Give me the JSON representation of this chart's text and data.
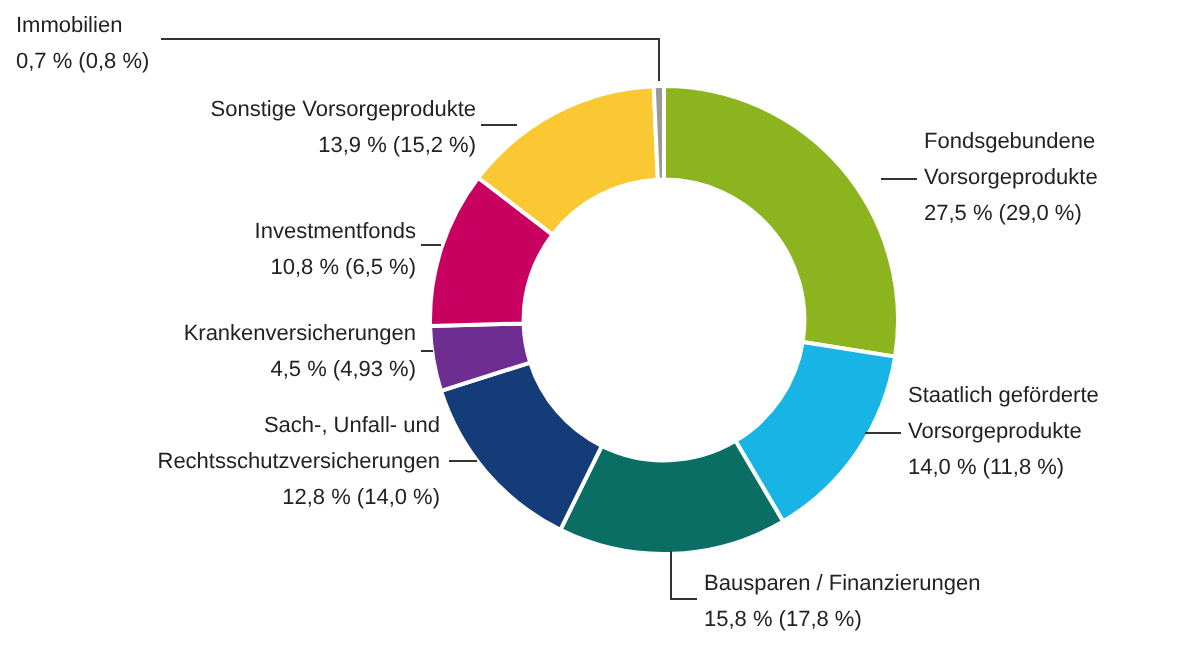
{
  "chart_data": {
    "type": "donut",
    "legend": false,
    "categories": [
      "Fondsgebundene Vorsorgeprodukte",
      "Staatlich geförderte Vorsorgeprodukte",
      "Bausparen / Finanzierungen",
      "Sach-, Unfall- und Rechtsschutzversicherungen",
      "Krankenversicherungen",
      "Investmentfonds",
      "Sonstige Vorsorgeprodukte",
      "Immobilien"
    ],
    "values": [
      27.5,
      14.0,
      15.8,
      12.8,
      4.5,
      10.8,
      13.9,
      0.7
    ],
    "value_labels": [
      "27,5 % (29,0 %)",
      "14,0 % (11,8 %)",
      "15,8 % (17,8 %)",
      "12,8 % (14,0 %)",
      "4,5 % (4,93 %)",
      "10,8 % (6,5 %)",
      "13,9 % (15,2 %)",
      "0,7 % (0,8 %)"
    ],
    "colors": [
      "#8cb41e",
      "#19b4e6",
      "#0a6e64",
      "#143c78",
      "#6e2d91",
      "#c8005f",
      "#fac832",
      "#9a9a9a"
    ]
  }
}
